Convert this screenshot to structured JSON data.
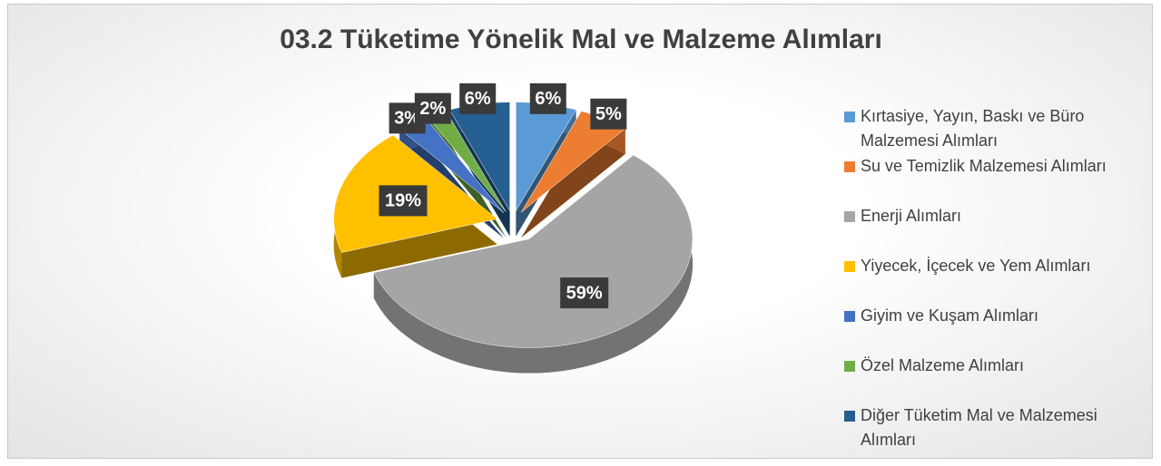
{
  "chart_data": {
    "type": "pie3d",
    "title": "03.2 Tüketime Yönelik Mal ve Malzeme Alımları",
    "categories": [
      "Kırtasiye, Yayın, Baskı ve Büro Malzemesi Alımları",
      "Su ve Temizlik Malzemesi Alımları",
      "Enerji Alımları",
      "Yiyecek, İçecek ve Yem Alımları",
      "Giyim ve Kuşam Alımları",
      "Özel Malzeme Alımları",
      "Diğer Tüketim Mal ve Malzemesi Alımları"
    ],
    "values": [
      6,
      5,
      59,
      19,
      3,
      2,
      6
    ],
    "value_labels": [
      "6%",
      "5%",
      "59%",
      "19%",
      "3%",
      "2%",
      "6%"
    ],
    "colors": [
      "#5b9bd5",
      "#ed7d31",
      "#a5a5a5",
      "#ffc000",
      "#4472c4",
      "#70ad47",
      "#255e91"
    ],
    "legend": "right"
  }
}
